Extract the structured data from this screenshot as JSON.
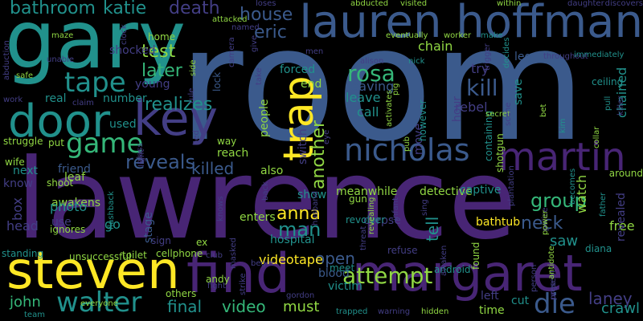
{
  "background": "#000000",
  "palette": {
    "purple": "#482575",
    "blue": "#3b5a8c",
    "teal": "#21918c",
    "green": "#35b779",
    "lime": "#90d743",
    "yellow": "#fde725",
    "indigo": "#433e85",
    "cyan": "#1f9e89"
  },
  "words": [
    {
      "text": "room",
      "color": "blue"
    },
    {
      "text": "lawrence",
      "color": "purple"
    },
    {
      "text": "gary",
      "color": "teal"
    },
    {
      "text": "lauren hoffman",
      "color": "blue"
    },
    {
      "text": "margaret",
      "color": "purple"
    },
    {
      "text": "find",
      "color": "purple"
    },
    {
      "text": "steven",
      "color": "yellow"
    },
    {
      "text": "door",
      "color": "teal"
    },
    {
      "text": "key",
      "color": "indigo"
    },
    {
      "text": "martin",
      "color": "purple"
    },
    {
      "text": "nicholas",
      "color": "blue"
    },
    {
      "text": "trap",
      "color": "yellow"
    },
    {
      "text": "tape",
      "color": "teal"
    },
    {
      "text": "game",
      "color": "green"
    },
    {
      "text": "reveals",
      "color": "blue"
    },
    {
      "text": "attempt",
      "color": "lime"
    },
    {
      "text": "walter",
      "color": "teal"
    },
    {
      "text": "die",
      "color": "blue"
    },
    {
      "text": "killed",
      "color": "blue"
    },
    {
      "text": "house",
      "color": "blue"
    },
    {
      "text": "eric",
      "color": "blue"
    },
    {
      "text": "death",
      "color": "indigo"
    },
    {
      "text": "katie",
      "color": "teal"
    },
    {
      "text": "bathroom",
      "color": "teal"
    },
    {
      "text": "test",
      "color": "lime"
    },
    {
      "text": "later",
      "color": "green"
    },
    {
      "text": "realizes",
      "color": "teal"
    },
    {
      "text": "rosa",
      "color": "green"
    },
    {
      "text": "kill",
      "color": "blue"
    },
    {
      "text": "group",
      "color": "green"
    },
    {
      "text": "neck",
      "color": "blue"
    },
    {
      "text": "anna",
      "color": "yellow"
    },
    {
      "text": "man",
      "color": "teal"
    },
    {
      "text": "open",
      "color": "blue"
    },
    {
      "text": "video",
      "color": "green"
    },
    {
      "text": "final",
      "color": "teal"
    },
    {
      "text": "must",
      "color": "lime"
    },
    {
      "text": "john",
      "color": "green"
    },
    {
      "text": "laney",
      "color": "indigo"
    },
    {
      "text": "crawl",
      "color": "teal"
    },
    {
      "text": "free",
      "color": "lime"
    },
    {
      "text": "saw",
      "color": "teal"
    },
    {
      "text": "another",
      "color": "lime"
    },
    {
      "text": "tell",
      "color": "teal"
    },
    {
      "text": "leave",
      "color": "teal"
    },
    {
      "text": "leaving",
      "color": "blue"
    },
    {
      "text": "call",
      "color": "teal"
    },
    {
      "text": "rebel",
      "color": "indigo"
    },
    {
      "text": "chain",
      "color": "lime"
    },
    {
      "text": "try",
      "color": "indigo"
    },
    {
      "text": "detective",
      "color": "lime"
    },
    {
      "text": "meanwhile",
      "color": "lime"
    },
    {
      "text": "hospital",
      "color": "teal"
    },
    {
      "text": "enters",
      "color": "lime"
    },
    {
      "text": "corpse",
      "color": "indigo"
    },
    {
      "text": "videotape",
      "color": "yellow"
    },
    {
      "text": "blood",
      "color": "blue"
    },
    {
      "text": "victim",
      "color": "teal"
    },
    {
      "text": "android",
      "color": "teal"
    },
    {
      "text": "captive",
      "color": "teal"
    },
    {
      "text": "bathtub",
      "color": "yellow"
    },
    {
      "text": "watch",
      "color": "lime"
    },
    {
      "text": "chained",
      "color": "teal"
    },
    {
      "text": "revealed",
      "color": "indigo"
    },
    {
      "text": "box",
      "color": "indigo"
    },
    {
      "text": "awakens",
      "color": "lime"
    },
    {
      "text": "photo",
      "color": "teal"
    },
    {
      "text": "head",
      "color": "indigo"
    },
    {
      "text": "go",
      "color": "teal"
    },
    {
      "text": "next",
      "color": "teal"
    },
    {
      "text": "know",
      "color": "indigo"
    },
    {
      "text": "friend",
      "color": "blue"
    },
    {
      "text": "leaf",
      "color": "lime"
    },
    {
      "text": "reach",
      "color": "lime"
    },
    {
      "text": "also",
      "color": "lime"
    },
    {
      "text": "show",
      "color": "teal"
    },
    {
      "text": "switch",
      "color": "indigo"
    },
    {
      "text": "end",
      "color": "lime"
    },
    {
      "text": "forced",
      "color": "teal"
    },
    {
      "text": "people",
      "color": "lime"
    },
    {
      "text": "used",
      "color": "teal"
    },
    {
      "text": "number",
      "color": "teal"
    },
    {
      "text": "real",
      "color": "teal"
    },
    {
      "text": "young",
      "color": "indigo"
    },
    {
      "text": "home",
      "color": "lime"
    },
    {
      "text": "shocked",
      "color": "indigo"
    },
    {
      "text": "hour",
      "color": "indigo"
    },
    {
      "text": "save",
      "color": "teal"
    },
    {
      "text": "move",
      "color": "indigo"
    },
    {
      "text": "however",
      "color": "teal"
    },
    {
      "text": "containing",
      "color": "teal"
    },
    {
      "text": "cut",
      "color": "teal"
    },
    {
      "text": "time",
      "color": "lime"
    },
    {
      "text": "left",
      "color": "indigo"
    },
    {
      "text": "lock",
      "color": "blue"
    },
    {
      "text": "stage",
      "color": "blue"
    },
    {
      "text": "shotgun",
      "color": "lime"
    },
    {
      "text": "found",
      "color": "lime"
    },
    {
      "text": "refuse",
      "color": "indigo"
    },
    {
      "text": "leg",
      "color": "blue"
    },
    {
      "text": "sign",
      "color": "indigo"
    },
    {
      "text": "use",
      "color": "indigo"
    },
    {
      "text": "ignores",
      "color": "lime"
    },
    {
      "text": "unsuccessful",
      "color": "lime"
    },
    {
      "text": "toilet",
      "color": "lime"
    },
    {
      "text": "cellphone",
      "color": "lime"
    },
    {
      "text": "andy",
      "color": "lime"
    },
    {
      "text": "fight",
      "color": "indigo"
    },
    {
      "text": "others",
      "color": "lime"
    },
    {
      "text": "ex",
      "color": "lime"
    },
    {
      "text": "club",
      "color": "indigo"
    },
    {
      "text": "meet",
      "color": "teal"
    },
    {
      "text": "standing",
      "color": "teal"
    },
    {
      "text": "wife",
      "color": "lime"
    },
    {
      "text": "struggle",
      "color": "lime"
    },
    {
      "text": "shoot",
      "color": "lime"
    },
    {
      "text": "put",
      "color": "lime"
    },
    {
      "text": "way",
      "color": "lime"
    },
    {
      "text": "around",
      "color": "lime"
    },
    {
      "text": "becomes",
      "color": "teal"
    },
    {
      "text": "diana",
      "color": "teal"
    },
    {
      "text": "father",
      "color": "teal"
    },
    {
      "text": "police",
      "color": "indigo"
    },
    {
      "text": "power",
      "color": "lime"
    },
    {
      "text": "gun",
      "color": "lime"
    },
    {
      "text": "revolver",
      "color": "teal"
    },
    {
      "text": "pull",
      "color": "teal"
    },
    {
      "text": "ceiling",
      "color": "teal"
    },
    {
      "text": "kim",
      "color": "teal"
    },
    {
      "text": "collar",
      "color": "lime"
    },
    {
      "text": "secret",
      "color": "lime"
    },
    {
      "text": "pub",
      "color": "lime"
    },
    {
      "text": "nick",
      "color": "teal"
    },
    {
      "text": "alison",
      "color": "indigo"
    },
    {
      "text": "worker",
      "color": "lime"
    },
    {
      "text": "make",
      "color": "teal"
    },
    {
      "text": "eventually",
      "color": "lime"
    },
    {
      "text": "throughout",
      "color": "indigo"
    },
    {
      "text": "immediately",
      "color": "teal"
    },
    {
      "text": "daughter",
      "color": "indigo"
    },
    {
      "text": "within",
      "color": "lime"
    },
    {
      "text": "visited",
      "color": "lime"
    },
    {
      "text": "abducted",
      "color": "lime"
    },
    {
      "text": "loses",
      "color": "indigo"
    },
    {
      "text": "attacked",
      "color": "lime"
    },
    {
      "text": "maze",
      "color": "lime"
    },
    {
      "text": "safe",
      "color": "lime"
    },
    {
      "text": "work",
      "color": "indigo"
    },
    {
      "text": "claim",
      "color": "indigo"
    },
    {
      "text": "rule",
      "color": "indigo"
    },
    {
      "text": "side",
      "color": "lime"
    },
    {
      "text": "named",
      "color": "indigo"
    },
    {
      "text": "give",
      "color": "indigo"
    },
    {
      "text": "take",
      "color": "indigo"
    },
    {
      "text": "men",
      "color": "indigo"
    },
    {
      "text": "activates",
      "color": "lime"
    },
    {
      "text": "pig",
      "color": "lime"
    },
    {
      "text": "decides",
      "color": "teal"
    },
    {
      "text": "scene",
      "color": "indigo"
    },
    {
      "text": "bet",
      "color": "lime"
    },
    {
      "text": "husband",
      "color": "indigo"
    },
    {
      "text": "back",
      "color": "indigo"
    },
    {
      "text": "flashback",
      "color": "teal"
    },
    {
      "text": "team",
      "color": "teal"
    },
    {
      "text": "gordon",
      "color": "indigo"
    },
    {
      "text": "trapped",
      "color": "teal"
    },
    {
      "text": "warning",
      "color": "indigo"
    },
    {
      "text": "hidden",
      "color": "lime"
    },
    {
      "text": "urge",
      "color": "indigo"
    },
    {
      "text": "present",
      "color": "indigo"
    },
    {
      "text": "antidote",
      "color": "lime"
    },
    {
      "text": "person",
      "color": "indigo"
    },
    {
      "text": "awaken",
      "color": "indigo"
    },
    {
      "text": "begin",
      "color": "indigo"
    },
    {
      "text": "strike",
      "color": "indigo"
    },
    {
      "text": "unable",
      "color": "indigo"
    },
    {
      "text": "abduction",
      "color": "indigo"
    },
    {
      "text": "clock",
      "color": "indigo"
    },
    {
      "text": "discovers",
      "color": "indigo"
    },
    {
      "text": "plantation",
      "color": "indigo"
    },
    {
      "text": "killer",
      "color": "indigo"
    },
    {
      "text": "glass",
      "color": "indigo"
    },
    {
      "text": "light",
      "color": "indigo"
    },
    {
      "text": "bed",
      "color": "indigo"
    },
    {
      "text": "sing",
      "color": "indigo"
    },
    {
      "text": "masked",
      "color": "indigo"
    },
    {
      "text": "everyone",
      "color": "lime"
    },
    {
      "text": "camera",
      "color": "indigo"
    },
    {
      "text": "knows",
      "color": "indigo"
    },
    {
      "text": "threat",
      "color": "indigo"
    },
    {
      "text": "revealing",
      "color": "lime"
    },
    {
      "text": "infant",
      "color": "indigo"
    },
    {
      "text": "trigger",
      "color": "indigo"
    },
    {
      "text": "eye",
      "color": "indigo"
    }
  ]
}
